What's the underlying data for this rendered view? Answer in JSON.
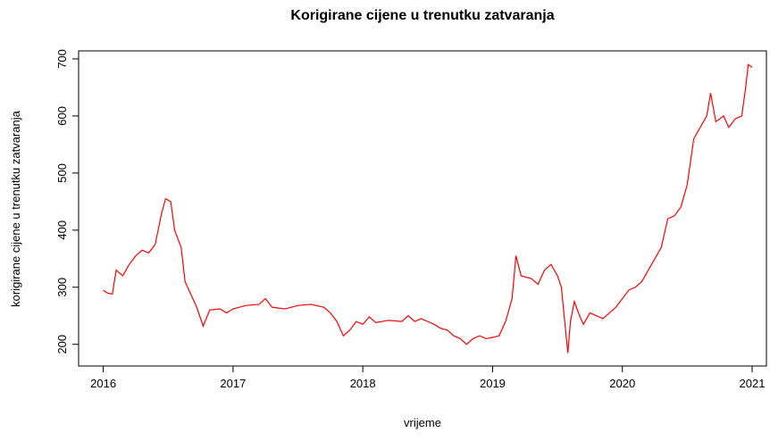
{
  "chart_data": {
    "type": "line",
    "title": "Korigirane cijene u trenutku zatvaranja",
    "xlabel": "vrijeme",
    "ylabel": "korigirane cijene u trenutku zatvaranja",
    "x": [
      2016.0,
      2016.03,
      2016.07,
      2016.1,
      2016.15,
      2016.2,
      2016.25,
      2016.3,
      2016.35,
      2016.4,
      2016.45,
      2016.48,
      2016.52,
      2016.55,
      2016.6,
      2016.63,
      2016.67,
      2016.72,
      2016.77,
      2016.82,
      2016.9,
      2016.95,
      2017.0,
      2017.1,
      2017.2,
      2017.25,
      2017.3,
      2017.4,
      2017.5,
      2017.6,
      2017.7,
      2017.75,
      2017.8,
      2017.85,
      2017.9,
      2017.95,
      2018.0,
      2018.05,
      2018.1,
      2018.2,
      2018.3,
      2018.35,
      2018.4,
      2018.45,
      2018.5,
      2018.55,
      2018.6,
      2018.65,
      2018.7,
      2018.75,
      2018.8,
      2018.85,
      2018.9,
      2018.95,
      2019.0,
      2019.05,
      2019.1,
      2019.15,
      2019.18,
      2019.22,
      2019.3,
      2019.35,
      2019.4,
      2019.45,
      2019.5,
      2019.53,
      2019.56,
      2019.58,
      2019.6,
      2019.63,
      2019.67,
      2019.7,
      2019.75,
      2019.8,
      2019.85,
      2019.9,
      2019.95,
      2020.0,
      2020.05,
      2020.1,
      2020.15,
      2020.2,
      2020.25,
      2020.3,
      2020.35,
      2020.4,
      2020.45,
      2020.5,
      2020.55,
      2020.6,
      2020.65,
      2020.68,
      2020.72,
      2020.78,
      2020.82,
      2020.87,
      2020.92,
      2020.95,
      2020.97,
      2021.0
    ],
    "series": [
      {
        "color": "#ff0000",
        "values": [
          295,
          290,
          288,
          330,
          320,
          340,
          355,
          365,
          360,
          375,
          430,
          455,
          450,
          400,
          370,
          310,
          290,
          265,
          232,
          260,
          262,
          255,
          262,
          268,
          270,
          280,
          265,
          262,
          268,
          270,
          265,
          255,
          240,
          215,
          225,
          240,
          235,
          248,
          238,
          242,
          240,
          250,
          240,
          245,
          240,
          235,
          228,
          225,
          215,
          210,
          200,
          210,
          215,
          210,
          212,
          215,
          240,
          280,
          355,
          320,
          315,
          305,
          330,
          340,
          320,
          300,
          230,
          185,
          240,
          275,
          250,
          235,
          255,
          250,
          245,
          255,
          265,
          280,
          295,
          300,
          310,
          330,
          350,
          370,
          420,
          425,
          440,
          480,
          560,
          580,
          600,
          640,
          590,
          600,
          580,
          595,
          600,
          650,
          690,
          685
        ]
      }
    ],
    "xlim": [
      2015.81,
      2021.11
    ],
    "ylim": [
      162,
      714
    ],
    "xticks": [
      2016,
      2017,
      2018,
      2019,
      2020,
      2021
    ],
    "yticks": [
      200,
      300,
      400,
      500,
      600,
      700
    ]
  }
}
